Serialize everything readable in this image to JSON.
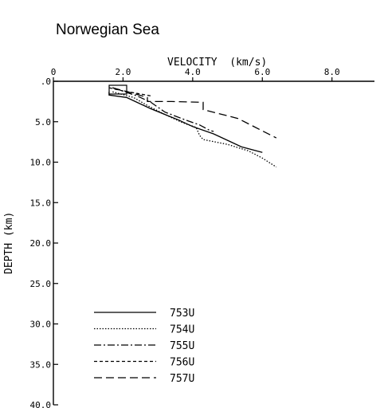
{
  "chart_data": {
    "type": "line",
    "title": "Norwegian Sea",
    "xlabel": "VELOCITY  (km/s)",
    "ylabel": "DEPTH (km)",
    "xlim": [
      0,
      9.0
    ],
    "ylim": [
      0,
      40
    ],
    "y_inverted": true,
    "x_axis_position": "top",
    "x_ticks": [
      {
        "value": 0,
        "label": "0"
      },
      {
        "value": 2,
        "label": "2.0"
      },
      {
        "value": 4,
        "label": "4.0"
      },
      {
        "value": 6,
        "label": "6.0"
      },
      {
        "value": 8,
        "label": "8.0"
      }
    ],
    "y_ticks": [
      {
        "value": 0,
        "label": ".0"
      },
      {
        "value": 5,
        "label": "5.0"
      },
      {
        "value": 10,
        "label": "10.0"
      },
      {
        "value": 15,
        "label": "15.0"
      },
      {
        "value": 20,
        "label": "20.0"
      },
      {
        "value": 25,
        "label": "25.0"
      },
      {
        "value": 30,
        "label": "30.0"
      },
      {
        "value": 35,
        "label": "35.0"
      },
      {
        "value": 40,
        "label": "40.0"
      }
    ],
    "legend_position": "bottom-left",
    "series": [
      {
        "name": "753U",
        "style": "solid",
        "x": [
          1.6,
          1.6,
          2.1,
          2.4,
          2.8,
          3.2,
          3.6,
          4.0,
          4.6,
          5.0,
          5.4,
          6.0
        ],
        "y": [
          1.3,
          1.7,
          2.0,
          2.6,
          3.4,
          4.1,
          4.8,
          5.6,
          6.5,
          7.3,
          8.1,
          8.8
        ]
      },
      {
        "name": "754U",
        "style": "dotted",
        "x": [
          1.7,
          2.3,
          2.7,
          3.2,
          3.7,
          4.1,
          4.2,
          4.3,
          5.0,
          5.6,
          6.0,
          6.4
        ],
        "y": [
          1.3,
          2.0,
          3.0,
          4.1,
          5.1,
          5.7,
          6.7,
          7.2,
          7.8,
          8.6,
          9.5,
          10.6
        ]
      },
      {
        "name": "755U",
        "style": "dashdot",
        "x": [
          1.7,
          2.4,
          2.8,
          3.2,
          3.8,
          4.2,
          4.5,
          4.6
        ],
        "y": [
          0.8,
          1.8,
          2.6,
          3.8,
          4.8,
          5.4,
          6.1,
          6.2
        ]
      },
      {
        "name": "756U",
        "style": "shortdash",
        "x": [
          1.6,
          1.9,
          2.4,
          2.8
        ],
        "y": [
          0.8,
          1.1,
          1.5,
          1.8
        ]
      },
      {
        "name": "757U",
        "style": "longdash",
        "x": [
          1.7,
          2.3,
          2.7,
          2.7,
          3.4,
          4.3,
          4.3,
          5.3,
          6.4
        ],
        "y": [
          0.8,
          1.5,
          2.0,
          2.5,
          2.5,
          2.6,
          3.5,
          4.6,
          7.0
        ]
      }
    ]
  }
}
